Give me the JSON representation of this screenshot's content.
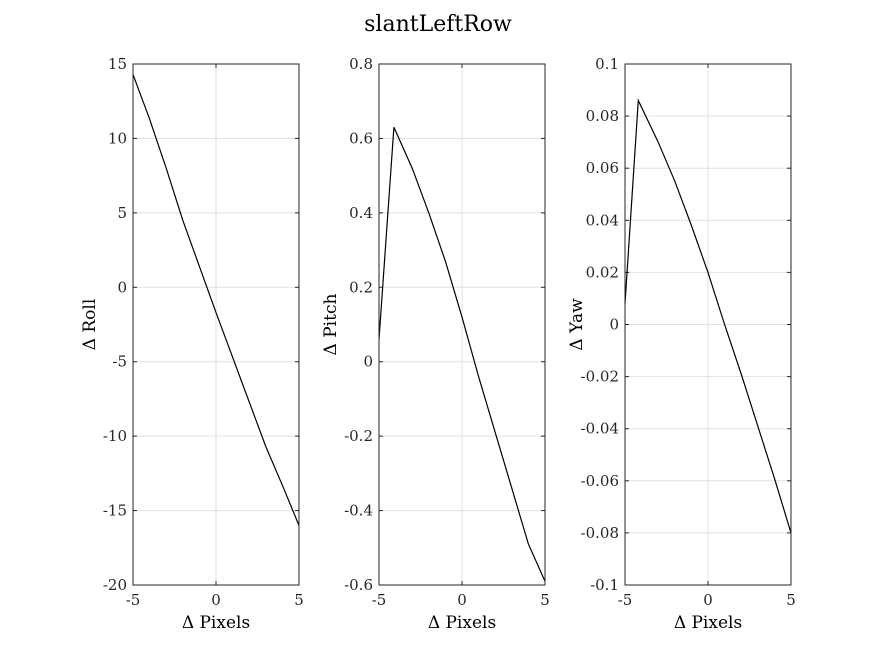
{
  "figure": {
    "title": "slantLeftRow"
  },
  "chart_data": [
    {
      "type": "line",
      "xlabel": "Δ Pixels",
      "ylabel": "Δ Roll",
      "xlim": [
        -5,
        5
      ],
      "ylim": [
        -20,
        15
      ],
      "xticks": [
        "-5",
        "0",
        "5"
      ],
      "yticks": [
        "-20",
        "-15",
        "-10",
        "-5",
        "0",
        "5",
        "10",
        "15"
      ],
      "grid": true,
      "series": [
        {
          "x": [
            -5,
            -4,
            -3,
            -2,
            -1,
            0,
            1,
            2,
            3,
            4,
            5
          ],
          "values": [
            14.3,
            11.3,
            8.0,
            4.5,
            1.4,
            -1.7,
            -4.7,
            -7.7,
            -10.7,
            -13.3,
            -16.0
          ]
        }
      ]
    },
    {
      "type": "line",
      "xlabel": "Δ Pixels",
      "ylabel": "Δ Pitch",
      "xlim": [
        -5,
        5
      ],
      "ylim": [
        -0.6,
        0.8
      ],
      "xticks": [
        "-5",
        "0",
        "5"
      ],
      "yticks": [
        "-0.6",
        "-0.4",
        "-0.2",
        "0",
        "0.2",
        "0.4",
        "0.6",
        "0.8"
      ],
      "grid": true,
      "series": [
        {
          "x": [
            -5,
            -4.1,
            -3,
            -2,
            -1,
            0,
            1,
            2,
            3,
            4,
            5
          ],
          "values": [
            0.06,
            0.63,
            0.52,
            0.4,
            0.27,
            0.12,
            -0.04,
            -0.19,
            -0.34,
            -0.49,
            -0.59
          ]
        }
      ]
    },
    {
      "type": "line",
      "xlabel": "Δ Pixels",
      "ylabel": "Δ Yaw",
      "xlim": [
        -5,
        5
      ],
      "ylim": [
        -0.1,
        0.1
      ],
      "xticks": [
        "-5",
        "0",
        "5"
      ],
      "yticks": [
        "-0.1",
        "-0.08",
        "-0.06",
        "-0.04",
        "-0.02",
        "0",
        "0.02",
        "0.04",
        "0.06",
        "0.08",
        "0.1"
      ],
      "grid": true,
      "series": [
        {
          "x": [
            -5,
            -4.2,
            -3,
            -2,
            -1,
            0,
            1,
            2,
            3,
            4,
            5
          ],
          "values": [
            0.008,
            0.086,
            0.07,
            0.055,
            0.038,
            0.02,
            0.0,
            -0.019,
            -0.039,
            -0.059,
            -0.08
          ]
        }
      ]
    }
  ]
}
